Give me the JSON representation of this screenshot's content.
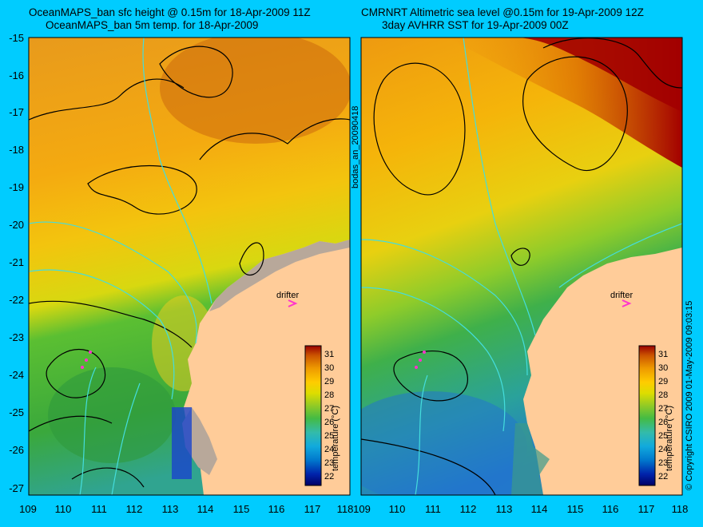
{
  "left_panel": {
    "title_line1": "OceanMAPS_ban sfc height @ 0.15m for 18-Apr-2009 11Z",
    "title_line2": "OceanMAPS_ban 5m temp. for 18-Apr-2009",
    "drifter_label": "drifter",
    "colorbar_label": "temperature (°C)"
  },
  "right_panel": {
    "title_line1": "CMRNRT Altimetric sea level  @0.15m  for 19-Apr-2009 12Z",
    "title_line2": "3day AVHRR SST for 19-Apr-2009 00Z",
    "drifter_label": "drifter",
    "colorbar_label": "temperature (°C)"
  },
  "side_text": {
    "run_id": "bodas_an_20090418",
    "copyright": "© Copyright CSIRO 2009   01-May-2009 09:03:15"
  },
  "axes": {
    "lat_ticks": [
      "-15",
      "-16",
      "-17",
      "-18",
      "-19",
      "-20",
      "-21",
      "-22",
      "-23",
      "-24",
      "-25",
      "-26",
      "-27"
    ],
    "lon_ticks_left": [
      "109",
      "110",
      "111",
      "112",
      "113",
      "114",
      "115",
      "116",
      "117",
      "118"
    ],
    "lon_ticks_right": [
      "109",
      "110",
      "111",
      "112",
      "113",
      "114",
      "115",
      "116",
      "117",
      "118"
    ],
    "lon_range": [
      109,
      118
    ],
    "lat_range": [
      -27,
      -15
    ]
  },
  "colorbar": {
    "ticks": [
      "31",
      "30",
      "29",
      "28",
      "27",
      "26",
      "25",
      "24",
      "23",
      "22"
    ],
    "range": [
      21,
      31.5
    ]
  },
  "colors": {
    "background": "#00ccff",
    "land": "#ffcc99",
    "contour": "#000000",
    "bathymetry": "#44dddd",
    "drifter": "#ff33cc"
  }
}
